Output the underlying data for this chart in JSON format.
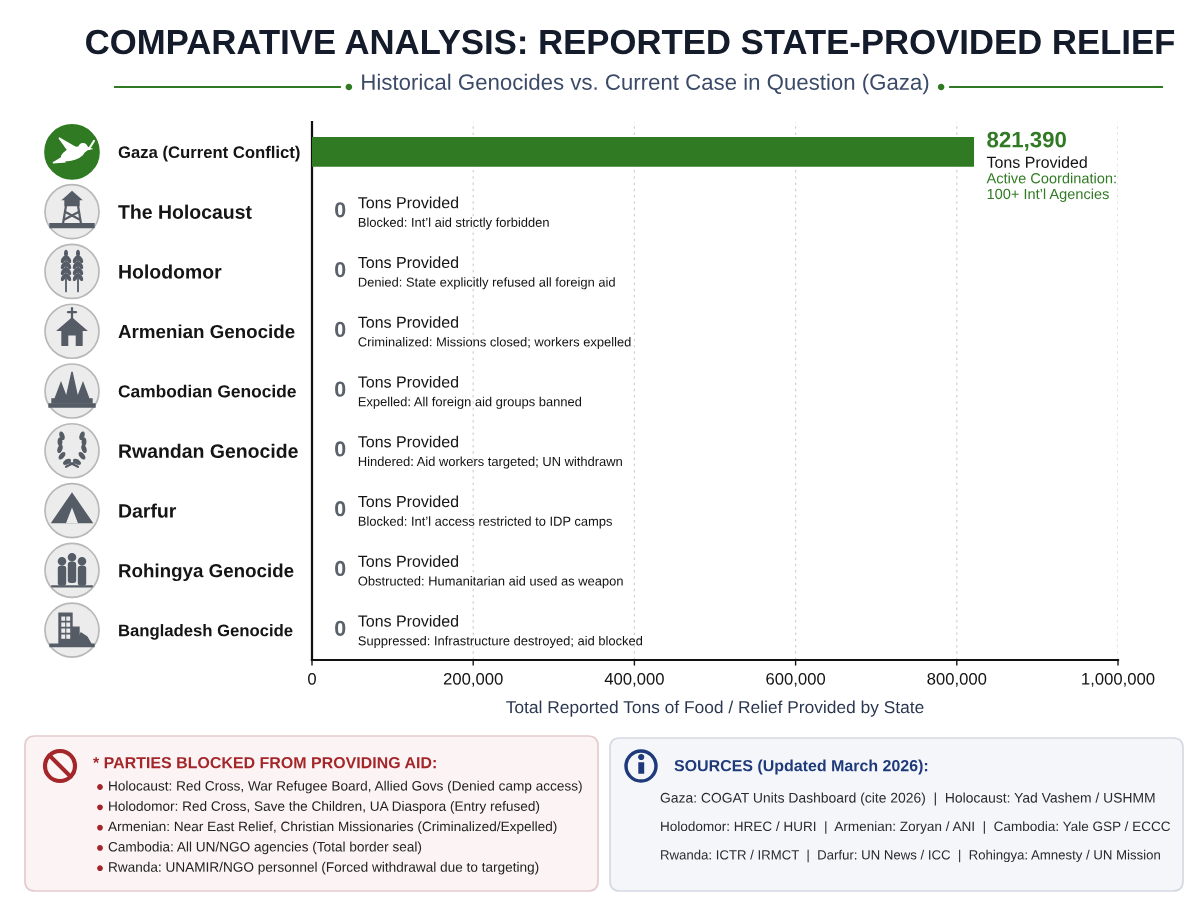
{
  "chart_data": {
    "type": "bar",
    "orientation": "horizontal",
    "title": "COMPARATIVE ANALYSIS: REPORTED STATE-PROVIDED RELIEF",
    "subtitle": "Historical Genocides vs. Current Case in Question (Gaza)",
    "xlabel": "Total Reported Tons of Food / Relief Provided by State",
    "categories": [
      "Gaza (Current Conflict)",
      "The Holocaust",
      "Holodomor",
      "Armenian Genocide",
      "Cambodian Genocide",
      "Rwandan Genocide",
      "Darfur",
      "Rohingya Genocide",
      "Bangladesh Genocide"
    ],
    "values": [
      821390,
      0,
      0,
      0,
      0,
      0,
      0,
      0,
      0
    ],
    "colors": [
      "#2f7a22",
      "#5b616b",
      "#5b616b",
      "#5b616b",
      "#5b616b",
      "#5b616b",
      "#5b616b",
      "#5b616b",
      "#5b616b"
    ],
    "value_labels": [
      "821,390",
      "0",
      "0",
      "0",
      "0",
      "0",
      "0",
      "0",
      "0"
    ],
    "xlim": [
      0,
      1000000
    ],
    "xticks": [
      0,
      {
        "value": 200000,
        "label": "200,000"
      },
      {
        "value": 400000,
        "label": "400,000"
      },
      {
        "value": 600000,
        "label": "600,000"
      },
      {
        "value": 800000,
        "label": "800,000"
      },
      {
        "value": 1000000,
        "label": "1,000,000"
      }
    ],
    "grid": "x",
    "annotations": [
      "Tons Provided",
      "Active Coordination:\n100+ Int’l Agencies",
      "Tons Provided",
      "Blocked: Int’l aid strictly forbidden",
      "Tons Provided",
      "Denied: State explicitly refused all foreign aid",
      "Tons Provided",
      "Criminalized: Missions closed; workers expelled",
      "Tons Provided",
      "Expelled: All foreign aid groups banned",
      "Tons Provided",
      "Hindered: Aid workers targeted; UN withdrawn",
      "Tons Provided",
      "Blocked: Int’l access restricted to IDP camps",
      "Tons Provided",
      "Obstructed: Humanitarian aid used as weapon",
      "Tons Provided",
      "Suppressed: Infrastructure destroyed; aid blocked",
      "* PARTIES BLOCKED FROM PROVIDING AID:",
      "Holocaust: Red Cross, War Refugee Board, Allied Govs (Denied camp access)",
      "Holodomor: Red Cross, Save the Children, UA Diaspora (Entry refused)",
      "Armenian: Near East Relief, Christian Missionaries (Criminalized/Expelled)",
      "Cambodia: All UN/NGO agencies (Total border seal)",
      "Rwanda: UNAMIR/NGO personnel (Forced withdrawal due to targeting)",
      "SOURCES (Updated March 2026):",
      "Gaza: COGAT Units Dashboard (cite 2026)  |  Holocaust: Yad Vashem / USHMM",
      "Holodomor: HREC / HURI  |  Armenian: Zoryan / ANI  |  Cambodia: Yale GSP / ECCC",
      "Rwanda: ICTR / IRMCT  |  Darfur: UN News / ICC  |  Rohingya: Amnesty / UN Mission"
    ]
  }
}
